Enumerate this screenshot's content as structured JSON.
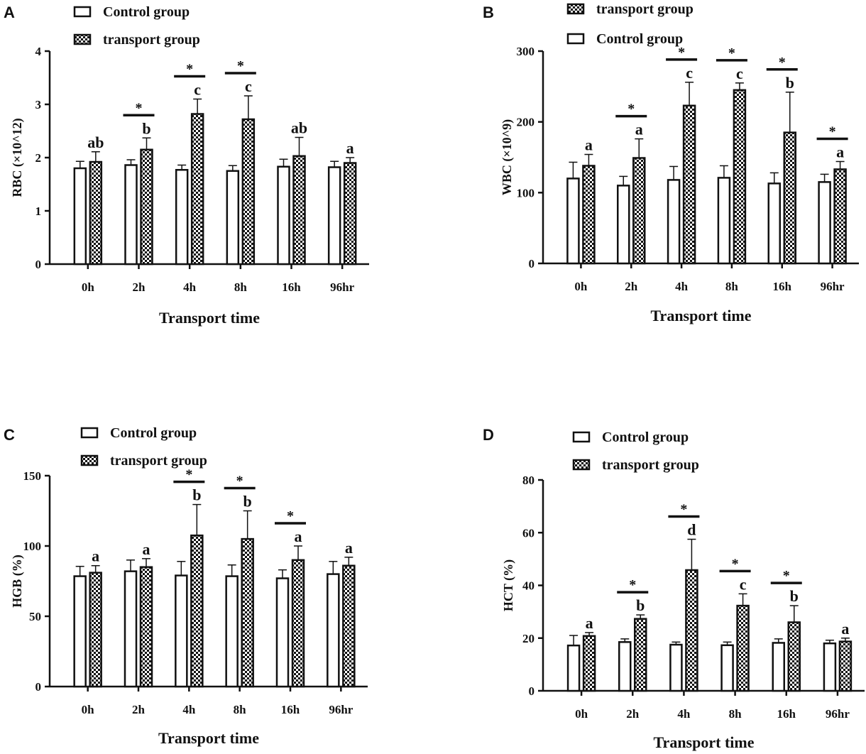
{
  "colors": {
    "ink": "#111111",
    "background": "#ffffff",
    "bar_fill": "#ffffff"
  },
  "chart_data": [
    {
      "panel": "A",
      "type": "bar",
      "ylabel": "RBC (×10^12)",
      "xlabel": "Transport time",
      "ylim": [
        0,
        4
      ],
      "yticks": [
        0,
        1,
        2,
        3,
        4
      ],
      "categories": [
        "0h",
        "2h",
        "4h",
        "8h",
        "16h",
        "96hr"
      ],
      "legend": [
        "Control group",
        "transport group"
      ],
      "series": [
        {
          "name": "Control group",
          "pattern": "open",
          "values": [
            1.8,
            1.86,
            1.77,
            1.75,
            1.83,
            1.82
          ],
          "errors": [
            0.13,
            0.1,
            0.09,
            0.1,
            0.14,
            0.11
          ]
        },
        {
          "name": "transport group",
          "pattern": "checker",
          "values": [
            1.92,
            2.15,
            2.82,
            2.72,
            2.03,
            1.9
          ],
          "errors": [
            0.19,
            0.22,
            0.28,
            0.44,
            0.35,
            0.1
          ]
        }
      ],
      "letters": [
        "ab",
        "b",
        "c",
        "c",
        "ab",
        "a"
      ],
      "significance": [
        false,
        true,
        true,
        true,
        false,
        false
      ]
    },
    {
      "panel": "B",
      "type": "bar",
      "ylabel": "WBC (×10^9)",
      "xlabel": "Transport time",
      "ylim": [
        0,
        300
      ],
      "yticks": [
        0,
        100,
        200,
        300
      ],
      "categories": [
        "0h",
        "2h",
        "4h",
        "8h",
        "16h",
        "96hr"
      ],
      "legend": [
        "transport group",
        "Control group"
      ],
      "series": [
        {
          "name": "Control group",
          "pattern": "open",
          "values": [
            120,
            110,
            118,
            121,
            113,
            115
          ],
          "errors": [
            23,
            13,
            19,
            17,
            15,
            11
          ]
        },
        {
          "name": "transport group",
          "pattern": "checker",
          "values": [
            138,
            149,
            223,
            245,
            185,
            133
          ],
          "errors": [
            16,
            27,
            33,
            10,
            57,
            11
          ]
        }
      ],
      "letters": [
        "a",
        "a",
        "c",
        "c",
        "b",
        "a"
      ],
      "significance": [
        false,
        true,
        true,
        true,
        true,
        true
      ]
    },
    {
      "panel": "C",
      "type": "bar",
      "ylabel": "HGB (%)",
      "xlabel": "Transport time",
      "ylim": [
        0,
        150
      ],
      "yticks": [
        0,
        50,
        100,
        150
      ],
      "categories": [
        "0h",
        "2h",
        "4h",
        "8h",
        "16h",
        "96hr"
      ],
      "legend": [
        "Control group",
        "transport group"
      ],
      "series": [
        {
          "name": "Control group",
          "pattern": "open",
          "values": [
            78.5,
            82,
            79,
            78.5,
            77,
            80
          ],
          "errors": [
            7,
            8,
            10,
            8,
            6,
            9
          ]
        },
        {
          "name": "transport group",
          "pattern": "checker",
          "values": [
            81,
            85,
            107.5,
            105,
            90,
            86
          ],
          "errors": [
            5,
            6,
            22,
            20,
            10,
            6
          ]
        }
      ],
      "letters": [
        "a",
        "a",
        "b",
        "b",
        "a",
        "a"
      ],
      "significance": [
        false,
        false,
        true,
        true,
        true,
        false
      ]
    },
    {
      "panel": "D",
      "type": "bar",
      "ylabel": "HCT (%)",
      "xlabel": "Transport time",
      "ylim": [
        0,
        80
      ],
      "yticks": [
        0,
        20,
        40,
        60,
        80
      ],
      "categories": [
        "0h",
        "2h",
        "4h",
        "8h",
        "16h",
        "96hr"
      ],
      "legend": [
        "Control group",
        "transport group"
      ],
      "series": [
        {
          "name": "Control group",
          "pattern": "open",
          "values": [
            17.2,
            18.5,
            17.5,
            17.3,
            18.2,
            18
          ],
          "errors": [
            3.8,
            1.2,
            1,
            1.2,
            1.5,
            1.2
          ]
        },
        {
          "name": "transport group",
          "pattern": "checker",
          "values": [
            20.8,
            27.3,
            45.8,
            32.3,
            26,
            18.7
          ],
          "errors": [
            1.3,
            1.5,
            11.7,
            4.5,
            6.3,
            1.3
          ]
        }
      ],
      "letters": [
        "a",
        "b",
        "d",
        "c",
        "b",
        "a"
      ],
      "significance": [
        false,
        true,
        true,
        true,
        true,
        false
      ]
    }
  ]
}
